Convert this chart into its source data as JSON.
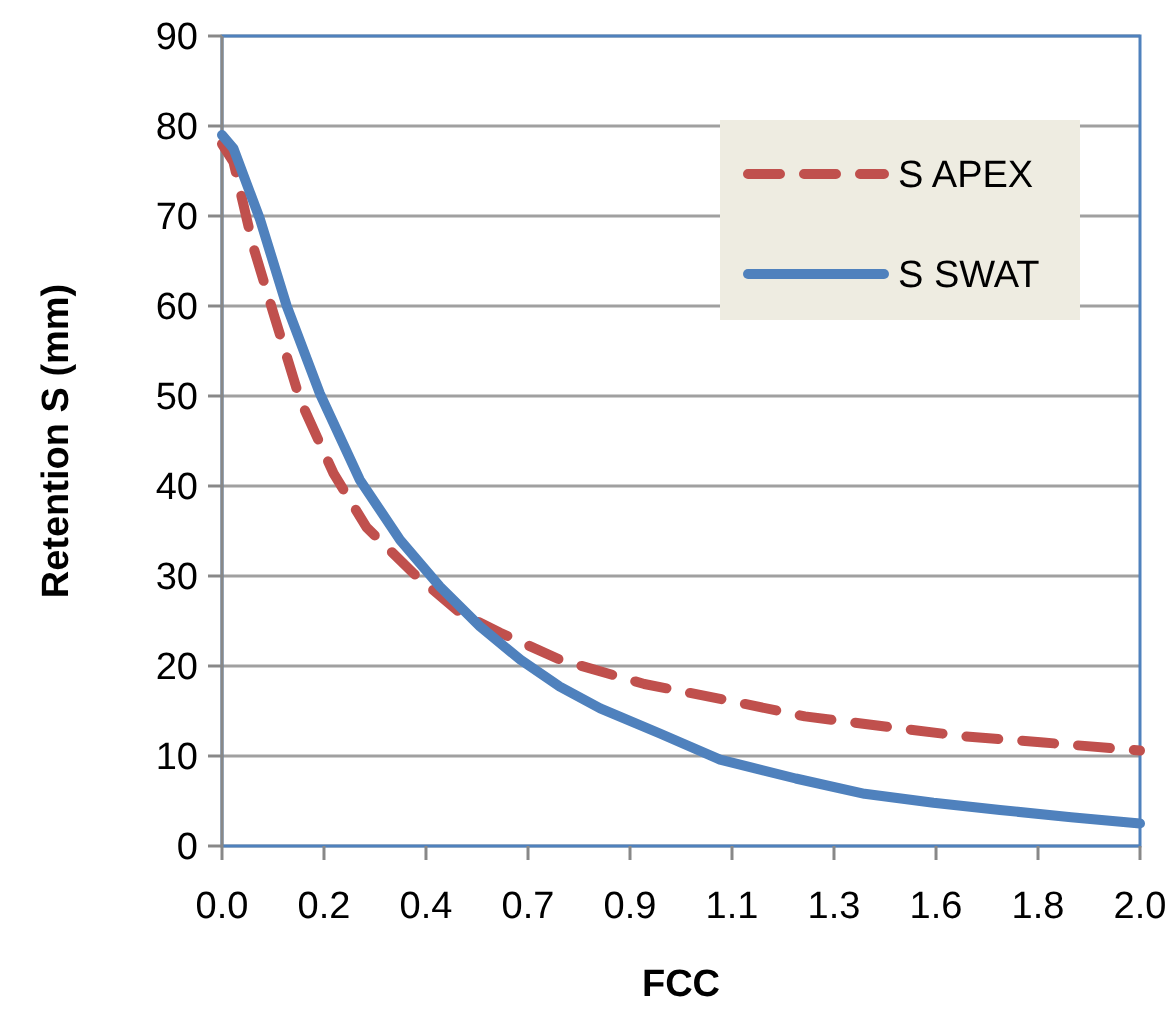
{
  "chart_data": {
    "type": "line",
    "xlabel": "FCC",
    "ylabel": "Retention S (mm)",
    "xlim": [
      0,
      2
    ],
    "ylim": [
      0,
      90
    ],
    "xticks": [
      {
        "value": 0,
        "label": "0.0"
      },
      {
        "value": 0.2222,
        "label": "0.2"
      },
      {
        "value": 0.4444,
        "label": "0.4"
      },
      {
        "value": 0.6667,
        "label": "0.7"
      },
      {
        "value": 0.8889,
        "label": "0.9"
      },
      {
        "value": 1.1111,
        "label": "1.1"
      },
      {
        "value": 1.3333,
        "label": "1.3"
      },
      {
        "value": 1.5556,
        "label": "1.6"
      },
      {
        "value": 1.7778,
        "label": "1.8"
      },
      {
        "value": 2,
        "label": "2.0"
      }
    ],
    "yticks": [
      0,
      10,
      20,
      30,
      40,
      50,
      60,
      70,
      80,
      90
    ],
    "grid": "y",
    "legend": "top right",
    "series": [
      {
        "name": "S APEX",
        "color": "#c0504d",
        "line_style": "dashed",
        "x": [
          0,
          0.025,
          0.068,
          0.112,
          0.17,
          0.243,
          0.315,
          0.417,
          0.519,
          0.606,
          0.736,
          0.92,
          1.09,
          1.27,
          1.44,
          1.615,
          1.79,
          2
        ],
        "values": [
          78,
          76,
          66.6,
          59.2,
          49.6,
          41.4,
          35.4,
          30.3,
          25.9,
          23.7,
          20.7,
          18,
          16.3,
          14.4,
          13.3,
          12.2,
          11.5,
          10.6
        ]
      },
      {
        "name": "S SWAT",
        "color": "#4f81bd",
        "line_style": "solid",
        "x": [
          0,
          0.025,
          0.083,
          0.141,
          0.213,
          0.3,
          0.388,
          0.475,
          0.562,
          0.65,
          0.736,
          0.824,
          0.954,
          1.085,
          1.25,
          1.4,
          1.55,
          1.695,
          1.85,
          2
        ],
        "values": [
          79,
          77.5,
          69.6,
          60,
          50.3,
          40.7,
          34,
          28.8,
          24.4,
          20.7,
          17.7,
          15.3,
          12.5,
          9.6,
          7.5,
          5.8,
          4.8,
          4,
          3.2,
          2.5
        ]
      }
    ]
  }
}
